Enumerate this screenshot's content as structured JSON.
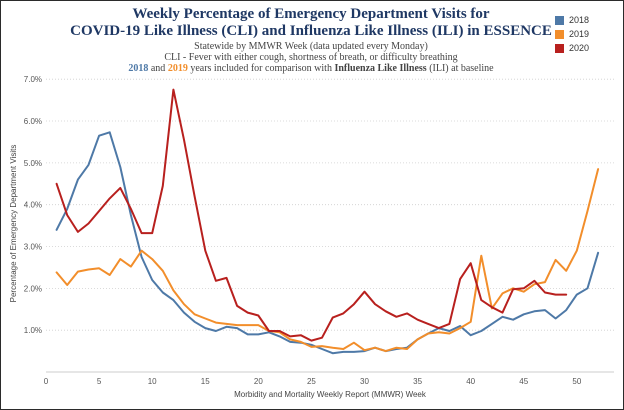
{
  "header": {
    "title_line1": "Weekly Percentage of Emergency Department Visits for",
    "title_line2": "COVID-19 Like Illness (CLI) and Influenza Like Illness (ILI) in ESSENCE",
    "subtitle_line1": "Statewide by MMWR Week (data updated every Monday)",
    "subtitle_line2": "CLI - Fever with either cough, shortness of breath, or difficulty breathing",
    "subtitle_line3": {
      "year_a": "2018",
      "connector": " and ",
      "year_b": "2019",
      "middle": " years included for comparison with ",
      "bold_term": "Influenza Like Illness",
      "tail": " (ILI) at baseline"
    }
  },
  "chart_data": {
    "type": "line",
    "xlabel": "Morbidity and Mortality Weekly Report (MMWR) Week",
    "ylabel": "Percentage of Emergency Department Visits",
    "xlim": [
      0,
      53.5
    ],
    "ylim": [
      0,
      7.1
    ],
    "xticks": [
      0,
      5,
      10,
      15,
      20,
      25,
      30,
      35,
      40,
      45,
      50
    ],
    "yticks": [
      1.0,
      2.0,
      3.0,
      4.0,
      5.0,
      6.0,
      7.0
    ],
    "ytick_labels": [
      "1.0%",
      "2.0%",
      "3.0%",
      "4.0%",
      "5.0%",
      "6.0%",
      "7.0%"
    ],
    "grid": "horizontal-dotted",
    "legend_position": "top-right",
    "series": [
      {
        "name": "2018",
        "color": "#4e79a7",
        "x": [
          1,
          2,
          3,
          4,
          5,
          6,
          7,
          8,
          9,
          10,
          11,
          12,
          13,
          14,
          15,
          16,
          17,
          18,
          19,
          20,
          21,
          22,
          23,
          24,
          25,
          26,
          27,
          28,
          29,
          30,
          31,
          32,
          33,
          34,
          35,
          36,
          37,
          38,
          39,
          40,
          41,
          42,
          43,
          44,
          45,
          46,
          47,
          48,
          49,
          50,
          51,
          52
        ],
        "values": [
          3.4,
          3.9,
          4.6,
          4.95,
          5.65,
          5.73,
          4.9,
          3.75,
          2.75,
          2.2,
          1.9,
          1.72,
          1.42,
          1.2,
          1.05,
          0.98,
          1.08,
          1.05,
          0.9,
          0.9,
          0.95,
          0.85,
          0.72,
          0.7,
          0.65,
          0.55,
          0.45,
          0.48,
          0.48,
          0.5,
          0.58,
          0.5,
          0.55,
          0.58,
          0.78,
          0.92,
          1.05,
          0.98,
          1.1,
          0.88,
          0.98,
          1.15,
          1.32,
          1.25,
          1.38,
          1.45,
          1.48,
          1.28,
          1.48,
          1.85,
          2.0,
          2.85
        ]
      },
      {
        "name": "2019",
        "color": "#f28e2b",
        "x": [
          1,
          2,
          3,
          4,
          5,
          6,
          7,
          8,
          9,
          10,
          11,
          12,
          13,
          14,
          15,
          16,
          17,
          18,
          19,
          20,
          21,
          22,
          23,
          24,
          25,
          26,
          27,
          28,
          29,
          30,
          31,
          32,
          33,
          34,
          35,
          36,
          37,
          38,
          39,
          40,
          41,
          42,
          43,
          44,
          45,
          46,
          47,
          48,
          49,
          50,
          51,
          52
        ],
        "values": [
          2.38,
          2.08,
          2.4,
          2.45,
          2.48,
          2.32,
          2.7,
          2.52,
          2.9,
          2.7,
          2.42,
          1.95,
          1.62,
          1.38,
          1.28,
          1.18,
          1.15,
          1.12,
          1.12,
          1.12,
          0.98,
          0.95,
          0.78,
          0.72,
          0.6,
          0.62,
          0.58,
          0.55,
          0.7,
          0.52,
          0.58,
          0.5,
          0.58,
          0.55,
          0.78,
          0.92,
          0.95,
          0.92,
          1.05,
          1.2,
          2.78,
          1.52,
          1.88,
          2.0,
          1.92,
          2.1,
          2.15,
          2.68,
          2.42,
          2.9,
          3.85,
          4.85
        ]
      },
      {
        "name": "2020",
        "color": "#b8201e",
        "x": [
          1,
          2,
          3,
          4,
          5,
          6,
          7,
          8,
          9,
          10,
          11,
          12,
          13,
          14,
          15,
          16,
          17,
          18,
          19,
          20,
          21,
          22,
          23,
          24,
          25,
          26,
          27,
          28,
          29,
          30,
          31,
          32,
          33,
          34,
          35,
          36,
          37,
          38,
          39,
          40,
          41,
          42,
          43,
          44,
          45,
          46,
          47,
          48,
          49
        ],
        "values": [
          4.5,
          3.75,
          3.35,
          3.55,
          3.85,
          4.15,
          4.4,
          3.9,
          3.32,
          3.32,
          4.45,
          6.75,
          5.55,
          4.2,
          2.9,
          2.18,
          2.25,
          1.58,
          1.42,
          1.35,
          0.98,
          0.98,
          0.85,
          0.88,
          0.75,
          0.82,
          1.3,
          1.4,
          1.62,
          1.92,
          1.62,
          1.45,
          1.32,
          1.4,
          1.25,
          1.15,
          1.05,
          1.15,
          2.22,
          2.6,
          1.72,
          1.55,
          1.42,
          1.98,
          2.0,
          2.18,
          1.9,
          1.85,
          1.85
        ]
      }
    ]
  }
}
